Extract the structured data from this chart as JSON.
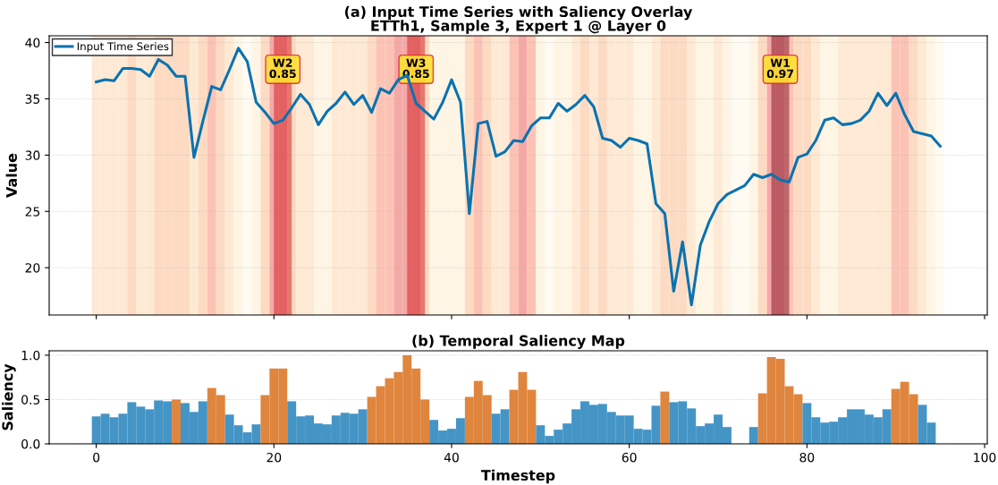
{
  "chart_data": [
    {
      "type": "line",
      "title": "(a) Input Time Series with Saliency Overlay\nETTh1, Sample 3, Expert 1 @ Layer 0",
      "ylabel": "Value",
      "x": [
        0,
        1,
        2,
        3,
        4,
        5,
        6,
        7,
        8,
        9,
        10,
        11,
        12,
        13,
        14,
        15,
        16,
        17,
        18,
        19,
        20,
        21,
        22,
        23,
        24,
        25,
        26,
        27,
        28,
        29,
        30,
        31,
        32,
        33,
        34,
        35,
        36,
        37,
        38,
        39,
        40,
        41,
        42,
        43,
        44,
        45,
        46,
        47,
        48,
        49,
        50,
        51,
        52,
        53,
        54,
        55,
        56,
        57,
        58,
        59,
        60,
        61,
        62,
        63,
        64,
        65,
        66,
        67,
        68,
        69,
        70,
        71,
        72,
        73,
        74,
        75,
        76,
        77,
        78,
        79,
        80,
        81,
        82,
        83,
        84,
        85,
        86,
        87,
        88,
        89,
        90,
        91,
        92,
        93,
        94,
        95
      ],
      "series": [
        {
          "name": "Input Time Series",
          "color": "#0a72b0",
          "values": [
            36.5,
            36.7,
            36.6,
            37.7,
            37.7,
            37.6,
            37.0,
            38.5,
            38.0,
            37.0,
            37.0,
            29.8,
            33.0,
            36.1,
            35.8,
            37.6,
            39.5,
            38.3,
            34.7,
            33.8,
            32.8,
            33.1,
            34.2,
            35.4,
            34.5,
            32.7,
            33.9,
            34.6,
            35.6,
            34.5,
            35.3,
            33.8,
            35.9,
            35.5,
            36.7,
            37.1,
            34.6,
            33.9,
            33.2,
            34.7,
            36.7,
            34.7,
            24.8,
            32.8,
            33.0,
            29.9,
            30.3,
            31.3,
            31.2,
            32.6,
            33.3,
            33.3,
            34.6,
            33.9,
            34.5,
            35.3,
            34.3,
            31.5,
            31.3,
            30.7,
            31.5,
            31.3,
            31.0,
            25.7,
            24.8,
            17.9,
            22.3,
            16.7,
            22.0,
            24.1,
            25.7,
            26.5,
            26.9,
            27.3,
            28.3,
            28.0,
            28.3,
            27.8,
            27.6,
            29.8,
            30.1,
            31.3,
            33.1,
            33.3,
            32.7,
            32.8,
            33.1,
            33.9,
            35.5,
            34.4,
            35.5,
            33.6,
            32.1,
            31.9,
            31.7,
            30.8
          ]
        }
      ],
      "xlim": [
        -5.3,
        100.3
      ],
      "xticks": [
        0,
        20,
        40,
        60,
        80,
        100
      ],
      "ylim": [
        15.8,
        40.6
      ],
      "yticks": [
        20,
        25,
        30,
        35,
        40
      ],
      "bands": [
        {
          "axis": "x",
          "from": -0.5,
          "to": 0.5,
          "color": "#fee6cc"
        },
        {
          "axis": "x",
          "from": 0.5,
          "to": 1.5,
          "color": "#fee6cc"
        },
        {
          "axis": "x",
          "from": 1.5,
          "to": 2.5,
          "color": "#fee6cc"
        },
        {
          "axis": "x",
          "from": 2.5,
          "to": 3.5,
          "color": "#fee6cc"
        },
        {
          "axis": "x",
          "from": 3.5,
          "to": 4.5,
          "color": "#fdd5b8"
        },
        {
          "axis": "x",
          "from": 4.5,
          "to": 5.5,
          "color": "#fee6cc"
        },
        {
          "axis": "x",
          "from": 5.5,
          "to": 6.5,
          "color": "#fee6cc"
        },
        {
          "axis": "x",
          "from": 6.5,
          "to": 7.5,
          "color": "#fdd5b8"
        },
        {
          "axis": "x",
          "from": 7.5,
          "to": 8.5,
          "color": "#fdd5b8"
        },
        {
          "axis": "x",
          "from": 8.5,
          "to": 9.5,
          "color": "#fdd5b8"
        },
        {
          "axis": "x",
          "from": 9.5,
          "to": 10.5,
          "color": "#fdd5b8"
        },
        {
          "axis": "x",
          "from": 10.5,
          "to": 11.5,
          "color": "#fee6cc"
        },
        {
          "axis": "x",
          "from": 11.5,
          "to": 12.5,
          "color": "#fdd5b8"
        },
        {
          "axis": "x",
          "from": 12.5,
          "to": 13.5,
          "color": "#fbb9a8"
        },
        {
          "axis": "x",
          "from": 13.5,
          "to": 14.5,
          "color": "#fdd5b8"
        },
        {
          "axis": "x",
          "from": 14.5,
          "to": 15.5,
          "color": "#fee6cc"
        },
        {
          "axis": "x",
          "from": 15.5,
          "to": 16.5,
          "color": "#fef3e0"
        },
        {
          "axis": "x",
          "from": 16.5,
          "to": 17.5,
          "color": "#fffaf0"
        },
        {
          "axis": "x",
          "from": 17.5,
          "to": 18.5,
          "color": "#fef3e0"
        },
        {
          "axis": "x",
          "from": 18.5,
          "to": 19.5,
          "color": "#fdd5b8"
        },
        {
          "axis": "x",
          "from": 19.5,
          "to": 20.5,
          "color": "#f39a98"
        },
        {
          "axis": "x",
          "from": 20.5,
          "to": 21.5,
          "color": "#f39a98"
        },
        {
          "axis": "x",
          "from": 21.5,
          "to": 22.5,
          "color": "#fdd5b8"
        },
        {
          "axis": "x",
          "from": 22.5,
          "to": 23.5,
          "color": "#fee6cc"
        },
        {
          "axis": "x",
          "from": 23.5,
          "to": 24.5,
          "color": "#fee6cc"
        },
        {
          "axis": "x",
          "from": 24.5,
          "to": 25.5,
          "color": "#fef3e0"
        },
        {
          "axis": "x",
          "from": 25.5,
          "to": 26.5,
          "color": "#fef3e0"
        },
        {
          "axis": "x",
          "from": 26.5,
          "to": 27.5,
          "color": "#fee6cc"
        },
        {
          "axis": "x",
          "from": 27.5,
          "to": 28.5,
          "color": "#fee6cc"
        },
        {
          "axis": "x",
          "from": 28.5,
          "to": 29.5,
          "color": "#fee6cc"
        },
        {
          "axis": "x",
          "from": 29.5,
          "to": 30.5,
          "color": "#fee6cc"
        },
        {
          "axis": "x",
          "from": 30.5,
          "to": 31.5,
          "color": "#fdd5b8"
        },
        {
          "axis": "x",
          "from": 31.5,
          "to": 32.5,
          "color": "#fbb9a8"
        },
        {
          "axis": "x",
          "from": 32.5,
          "to": 33.5,
          "color": "#fbb9a8"
        },
        {
          "axis": "x",
          "from": 33.5,
          "to": 34.5,
          "color": "#f39a98"
        },
        {
          "axis": "x",
          "from": 34.5,
          "to": 35.5,
          "color": "#f39a98"
        },
        {
          "axis": "x",
          "from": 35.5,
          "to": 36.5,
          "color": "#f39a98"
        },
        {
          "axis": "x",
          "from": 36.5,
          "to": 37.5,
          "color": "#fdd5b8"
        },
        {
          "axis": "x",
          "from": 37.5,
          "to": 38.5,
          "color": "#fef3e0"
        },
        {
          "axis": "x",
          "from": 38.5,
          "to": 39.5,
          "color": "#fef3e0"
        },
        {
          "axis": "x",
          "from": 39.5,
          "to": 40.5,
          "color": "#fef3e0"
        },
        {
          "axis": "x",
          "from": 40.5,
          "to": 41.5,
          "color": "#fef3e0"
        },
        {
          "axis": "x",
          "from": 41.5,
          "to": 42.5,
          "color": "#fdd5b8"
        },
        {
          "axis": "x",
          "from": 42.5,
          "to": 43.5,
          "color": "#fbb9a8"
        },
        {
          "axis": "x",
          "from": 43.5,
          "to": 44.5,
          "color": "#fdd5b8"
        },
        {
          "axis": "x",
          "from": 44.5,
          "to": 45.5,
          "color": "#fee6cc"
        },
        {
          "axis": "x",
          "from": 45.5,
          "to": 46.5,
          "color": "#fee6cc"
        },
        {
          "axis": "x",
          "from": 46.5,
          "to": 47.5,
          "color": "#fbb9a8"
        },
        {
          "axis": "x",
          "from": 47.5,
          "to": 48.5,
          "color": "#f39a98"
        },
        {
          "axis": "x",
          "from": 48.5,
          "to": 49.5,
          "color": "#fbb9a8"
        },
        {
          "axis": "x",
          "from": 49.5,
          "to": 50.5,
          "color": "#fef3e0"
        },
        {
          "axis": "x",
          "from": 50.5,
          "to": 51.5,
          "color": "#fffaf0"
        },
        {
          "axis": "x",
          "from": 51.5,
          "to": 52.5,
          "color": "#fef3e0"
        },
        {
          "axis": "x",
          "from": 52.5,
          "to": 53.5,
          "color": "#fef3e0"
        },
        {
          "axis": "x",
          "from": 53.5,
          "to": 54.5,
          "color": "#fee6cc"
        },
        {
          "axis": "x",
          "from": 54.5,
          "to": 55.5,
          "color": "#fdd5b8"
        },
        {
          "axis": "x",
          "from": 55.5,
          "to": 56.5,
          "color": "#fee6cc"
        },
        {
          "axis": "x",
          "from": 56.5,
          "to": 57.5,
          "color": "#fdd5b8"
        },
        {
          "axis": "x",
          "from": 57.5,
          "to": 58.5,
          "color": "#fee6cc"
        },
        {
          "axis": "x",
          "from": 58.5,
          "to": 59.5,
          "color": "#fee6cc"
        },
        {
          "axis": "x",
          "from": 59.5,
          "to": 60.5,
          "color": "#fee6cc"
        },
        {
          "axis": "x",
          "from": 60.5,
          "to": 61.5,
          "color": "#fef3e0"
        },
        {
          "axis": "x",
          "from": 61.5,
          "to": 62.5,
          "color": "#fef3e0"
        },
        {
          "axis": "x",
          "from": 62.5,
          "to": 63.5,
          "color": "#fee6cc"
        },
        {
          "axis": "x",
          "from": 63.5,
          "to": 64.5,
          "color": "#fdd5b8"
        },
        {
          "axis": "x",
          "from": 64.5,
          "to": 65.5,
          "color": "#fdd5b8"
        },
        {
          "axis": "x",
          "from": 65.5,
          "to": 66.5,
          "color": "#fdd5b8"
        },
        {
          "axis": "x",
          "from": 66.5,
          "to": 67.5,
          "color": "#fee6cc"
        },
        {
          "axis": "x",
          "from": 67.5,
          "to": 68.5,
          "color": "#fef3e0"
        },
        {
          "axis": "x",
          "from": 68.5,
          "to": 69.5,
          "color": "#fef3e0"
        },
        {
          "axis": "x",
          "from": 69.5,
          "to": 70.5,
          "color": "#fee6cc"
        },
        {
          "axis": "x",
          "from": 70.5,
          "to": 71.5,
          "color": "#fef3e0"
        },
        {
          "axis": "x",
          "from": 71.5,
          "to": 72.5,
          "color": "#fffaf0"
        },
        {
          "axis": "x",
          "from": 72.5,
          "to": 73.5,
          "color": "#fffaf0"
        },
        {
          "axis": "x",
          "from": 73.5,
          "to": 74.5,
          "color": "#fef3e0"
        },
        {
          "axis": "x",
          "from": 74.5,
          "to": 75.5,
          "color": "#fdd5b8"
        },
        {
          "axis": "x",
          "from": 75.5,
          "to": 76.5,
          "color": "#f39a98"
        },
        {
          "axis": "x",
          "from": 76.5,
          "to": 77.5,
          "color": "#f39a98"
        },
        {
          "axis": "x",
          "from": 77.5,
          "to": 78.5,
          "color": "#fbb9a8"
        },
        {
          "axis": "x",
          "from": 78.5,
          "to": 79.5,
          "color": "#fdd5b8"
        },
        {
          "axis": "x",
          "from": 79.5,
          "to": 80.5,
          "color": "#fdd5b8"
        },
        {
          "axis": "x",
          "from": 80.5,
          "to": 81.5,
          "color": "#fee6cc"
        },
        {
          "axis": "x",
          "from": 81.5,
          "to": 82.5,
          "color": "#fef3e0"
        },
        {
          "axis": "x",
          "from": 82.5,
          "to": 83.5,
          "color": "#fef3e0"
        },
        {
          "axis": "x",
          "from": 83.5,
          "to": 84.5,
          "color": "#fee6cc"
        },
        {
          "axis": "x",
          "from": 84.5,
          "to": 85.5,
          "color": "#fee6cc"
        },
        {
          "axis": "x",
          "from": 85.5,
          "to": 86.5,
          "color": "#fee6cc"
        },
        {
          "axis": "x",
          "from": 86.5,
          "to": 87.5,
          "color": "#fee6cc"
        },
        {
          "axis": "x",
          "from": 87.5,
          "to": 88.5,
          "color": "#fee6cc"
        },
        {
          "axis": "x",
          "from": 88.5,
          "to": 89.5,
          "color": "#fee6cc"
        },
        {
          "axis": "x",
          "from": 89.5,
          "to": 90.5,
          "color": "#fbb9a8"
        },
        {
          "axis": "x",
          "from": 90.5,
          "to": 91.5,
          "color": "#fbb9a8"
        },
        {
          "axis": "x",
          "from": 91.5,
          "to": 92.5,
          "color": "#fdd5b8"
        },
        {
          "axis": "x",
          "from": 92.5,
          "to": 93.5,
          "color": "#fee6cc"
        },
        {
          "axis": "x",
          "from": 93.5,
          "to": 94.5,
          "color": "#fef3e0"
        },
        {
          "axis": "x",
          "from": 94.5,
          "to": 95.5,
          "color": "#fffaf0"
        },
        {
          "axis": "x",
          "from": 20,
          "to": 22,
          "label": "W2\n0.85",
          "color": "#d62728"
        },
        {
          "axis": "x",
          "from": 35,
          "to": 37,
          "label": "W3\n0.85",
          "color": "#d62728"
        },
        {
          "axis": "x",
          "from": 76,
          "to": 78,
          "label": "W1\n0.97",
          "color": "#8b1a2a"
        }
      ],
      "grid": "y",
      "legend": "top left",
      "tick_labels": "y"
    },
    {
      "type": "bar",
      "title": "(b) Temporal Saliency Map",
      "xlabel": "Timestep",
      "ylabel": "Saliency",
      "x": [
        0,
        1,
        2,
        3,
        4,
        5,
        6,
        7,
        8,
        9,
        10,
        11,
        12,
        13,
        14,
        15,
        16,
        17,
        18,
        19,
        20,
        21,
        22,
        23,
        24,
        25,
        26,
        27,
        28,
        29,
        30,
        31,
        32,
        33,
        34,
        35,
        36,
        37,
        38,
        39,
        40,
        41,
        42,
        43,
        44,
        45,
        46,
        47,
        48,
        49,
        50,
        51,
        52,
        53,
        54,
        55,
        56,
        57,
        58,
        59,
        60,
        61,
        62,
        63,
        64,
        65,
        66,
        67,
        68,
        69,
        70,
        71,
        72,
        73,
        74,
        75,
        76,
        77,
        78,
        79,
        80,
        81,
        82,
        83,
        84,
        85,
        86,
        87,
        88,
        89,
        90,
        91,
        92,
        93,
        94,
        95
      ],
      "values": [
        0.31,
        0.34,
        0.3,
        0.34,
        0.47,
        0.42,
        0.39,
        0.49,
        0.48,
        0.5,
        0.46,
        0.36,
        0.48,
        0.63,
        0.55,
        0.33,
        0.21,
        0.13,
        0.22,
        0.55,
        0.85,
        0.85,
        0.48,
        0.31,
        0.32,
        0.23,
        0.22,
        0.32,
        0.35,
        0.34,
        0.39,
        0.53,
        0.65,
        0.74,
        0.81,
        1.0,
        0.85,
        0.5,
        0.27,
        0.15,
        0.17,
        0.29,
        0.53,
        0.71,
        0.55,
        0.34,
        0.39,
        0.61,
        0.81,
        0.61,
        0.21,
        0.09,
        0.16,
        0.23,
        0.39,
        0.48,
        0.44,
        0.45,
        0.36,
        0.32,
        0.32,
        0.17,
        0.16,
        0.43,
        0.59,
        0.47,
        0.48,
        0.4,
        0.2,
        0.23,
        0.33,
        0.19,
        0.0,
        0.0,
        0.19,
        0.57,
        0.98,
        0.96,
        0.65,
        0.56,
        0.46,
        0.3,
        0.24,
        0.25,
        0.3,
        0.39,
        0.39,
        0.33,
        0.3,
        0.39,
        0.62,
        0.7,
        0.56,
        0.44,
        0.24,
        0.0
      ],
      "colors": [
        "#3a8fc3",
        "#3a8fc3",
        "#3a8fc3",
        "#3a8fc3",
        "#3a8fc3",
        "#3a8fc3",
        "#3a8fc3",
        "#3a8fc3",
        "#3a8fc3",
        "#dd7e34",
        "#3a8fc3",
        "#3a8fc3",
        "#3a8fc3",
        "#dd7e34",
        "#dd7e34",
        "#3a8fc3",
        "#3a8fc3",
        "#3a8fc3",
        "#3a8fc3",
        "#dd7e34",
        "#dd7e34",
        "#dd7e34",
        "#3a8fc3",
        "#3a8fc3",
        "#3a8fc3",
        "#3a8fc3",
        "#3a8fc3",
        "#3a8fc3",
        "#3a8fc3",
        "#3a8fc3",
        "#3a8fc3",
        "#dd7e34",
        "#dd7e34",
        "#dd7e34",
        "#dd7e34",
        "#dd7e34",
        "#dd7e34",
        "#dd7e34",
        "#3a8fc3",
        "#3a8fc3",
        "#3a8fc3",
        "#3a8fc3",
        "#dd7e34",
        "#dd7e34",
        "#dd7e34",
        "#3a8fc3",
        "#3a8fc3",
        "#dd7e34",
        "#dd7e34",
        "#dd7e34",
        "#3a8fc3",
        "#3a8fc3",
        "#3a8fc3",
        "#3a8fc3",
        "#3a8fc3",
        "#3a8fc3",
        "#3a8fc3",
        "#3a8fc3",
        "#3a8fc3",
        "#3a8fc3",
        "#3a8fc3",
        "#3a8fc3",
        "#3a8fc3",
        "#3a8fc3",
        "#dd7e34",
        "#3a8fc3",
        "#3a8fc3",
        "#3a8fc3",
        "#3a8fc3",
        "#3a8fc3",
        "#3a8fc3",
        "#3a8fc3",
        "#3a8fc3",
        "#3a8fc3",
        "#3a8fc3",
        "#dd7e34",
        "#dd7e34",
        "#dd7e34",
        "#dd7e34",
        "#dd7e34",
        "#3a8fc3",
        "#3a8fc3",
        "#3a8fc3",
        "#3a8fc3",
        "#3a8fc3",
        "#3a8fc3",
        "#3a8fc3",
        "#3a8fc3",
        "#3a8fc3",
        "#3a8fc3",
        "#dd7e34",
        "#dd7e34",
        "#dd7e34",
        "#3a8fc3",
        "#3a8fc3",
        "#3a8fc3"
      ],
      "xlim": [
        -5.3,
        100.3
      ],
      "xticks": [
        0,
        20,
        40,
        60,
        80,
        100
      ],
      "ylim": [
        0,
        1.05
      ],
      "yticks": [
        {
          "value": 0,
          "label": "0.0"
        },
        {
          "value": 0.5,
          "label": "0.5"
        },
        {
          "value": 1.0,
          "label": "1.0"
        }
      ],
      "grid": "y"
    }
  ]
}
